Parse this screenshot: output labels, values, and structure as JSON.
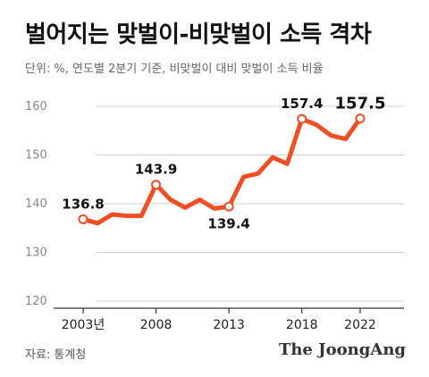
{
  "header": {
    "title": "벌어지는 맞벌이-비맞벌이 소득 격차",
    "subtitle": "단위: %, 연도별 2분기 기준, 비맞벌이 대비 맞벌이 소득 비율"
  },
  "footer": {
    "source": "자료: 통계청",
    "brand": "The JoongAng"
  },
  "colors": {
    "line": "#f04e23",
    "grid": "#d0d0d0"
  },
  "chart_data": {
    "type": "line",
    "title": "벌어지는 맞벌이-비맞벌이 소득 격차",
    "ylim": [
      120,
      160
    ],
    "y_ticks": [
      120,
      130,
      140,
      150,
      160
    ],
    "x_ticks": [
      {
        "x": 2003,
        "label": "2003년"
      },
      {
        "x": 2008,
        "label": "2008"
      },
      {
        "x": 2013,
        "label": "2013"
      },
      {
        "x": 2018,
        "label": "2018"
      },
      {
        "x": 2022,
        "label": "2022"
      }
    ],
    "xlim": [
      2003,
      2022
    ],
    "grid": true,
    "series": [
      {
        "x": [
          2003,
          2004,
          2005,
          2006,
          2007,
          2008,
          2009,
          2010,
          2011,
          2012,
          2013,
          2014,
          2015,
          2016,
          2017,
          2018,
          2019,
          2020,
          2021,
          2022
        ],
        "values": [
          136.8,
          136.0,
          137.8,
          137.5,
          137.5,
          143.9,
          140.8,
          139.2,
          140.8,
          139.0,
          139.4,
          145.5,
          146.2,
          149.5,
          148.2,
          157.4,
          156.2,
          154.0,
          153.3,
          157.5
        ]
      }
    ],
    "annotations": [
      {
        "x": 2003,
        "value": 136.8,
        "label": "136.8",
        "position": "above"
      },
      {
        "x": 2008,
        "value": 143.9,
        "label": "143.9",
        "position": "above"
      },
      {
        "x": 2013,
        "value": 139.4,
        "label": "139.4",
        "position": "below"
      },
      {
        "x": 2018,
        "value": 157.4,
        "label": "157.4",
        "position": "above"
      },
      {
        "x": 2022,
        "value": 157.5,
        "label": "157.5",
        "position": "above-large"
      }
    ]
  }
}
